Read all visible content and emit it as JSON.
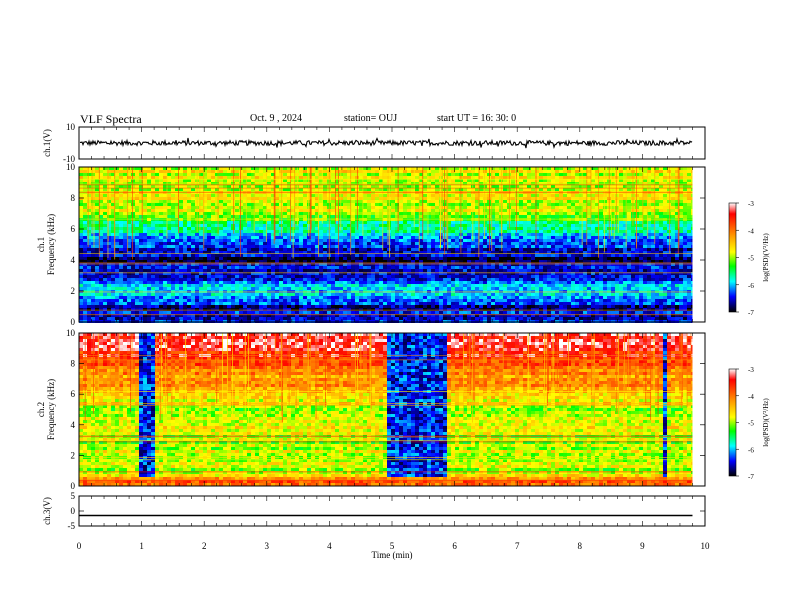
{
  "header": {
    "title": "VLF Spectra",
    "date": "Oct. 9 , 2024",
    "station": "station= OUJ",
    "start": "start UT = 16: 30: 0"
  },
  "chart_data": [
    {
      "type": "line",
      "id": "ch1-waveform",
      "ylabel": "ch.1(V)",
      "ylim": [
        -10,
        10
      ],
      "yticks": [
        "10",
        "-10"
      ],
      "xlim": [
        0,
        10
      ],
      "approx_level": 0,
      "approx_amplitude": 1.5
    },
    {
      "type": "heatmap",
      "id": "ch1-spectrogram",
      "ylabel": "ch.1\nFrequency (kHz)",
      "ylabel_lines": [
        "ch.1",
        "Frequency (kHz)"
      ],
      "ylim": [
        0,
        10
      ],
      "yticks": [
        "0",
        "2",
        "4",
        "6",
        "8",
        "10"
      ],
      "xlim": [
        0,
        10
      ],
      "data_end_min": 9.8,
      "colorbar": {
        "label": "log(PSD)(V²/Hz)",
        "ticks": [
          "-3",
          "-4",
          "-5",
          "-6",
          "-7"
        ],
        "range": [
          -7,
          -3
        ]
      },
      "level_by_freq_kHz": [
        [
          0,
          -6.5
        ],
        [
          1,
          -6.5
        ],
        [
          2,
          -6.0
        ],
        [
          3,
          -6.3
        ],
        [
          4,
          -6.8
        ],
        [
          5,
          -6.4
        ],
        [
          6,
          -5.6
        ],
        [
          7,
          -5.0
        ],
        [
          8,
          -4.8
        ],
        [
          9,
          -4.8
        ],
        [
          10,
          -4.8
        ]
      ]
    },
    {
      "type": "heatmap",
      "id": "ch2-spectrogram",
      "ylabel": "ch.2\nFrequency (kHz)",
      "ylabel_lines": [
        "ch.2",
        "Frequency (kHz)"
      ],
      "ylim": [
        0,
        10
      ],
      "yticks": [
        "0",
        "2",
        "4",
        "6",
        "8",
        "10"
      ],
      "xlim": [
        0,
        10
      ],
      "data_end_min": 9.8,
      "colorbar": {
        "label": "log(PSD)(V²/Hz)",
        "ticks": [
          "-3",
          "-4",
          "-5",
          "-6",
          "-7"
        ],
        "range": [
          -7,
          -3
        ]
      },
      "level_by_freq_kHz": [
        [
          0,
          -3.6
        ],
        [
          1,
          -4.9
        ],
        [
          2,
          -4.9
        ],
        [
          3,
          -5.0
        ],
        [
          4,
          -4.7
        ],
        [
          5,
          -4.9
        ],
        [
          6,
          -4.4
        ],
        [
          7,
          -4.2
        ],
        [
          8,
          -3.8
        ],
        [
          9,
          -3.4
        ],
        [
          10,
          -3.3
        ]
      ],
      "quiet_intervals_min": [
        [
          0.9,
          1.2
        ],
        [
          4.9,
          5.85
        ],
        [
          9.3,
          9.36
        ]
      ]
    },
    {
      "type": "line",
      "id": "ch3-waveform",
      "ylabel": "ch.3(V)",
      "ylim": [
        -5,
        5
      ],
      "yticks": [
        "5",
        "0",
        "-5"
      ],
      "xlim": [
        0,
        10
      ],
      "approx_level": -1.5
    }
  ],
  "xaxis": {
    "label": "Time (min)",
    "ticks": [
      "0",
      "1",
      "2",
      "3",
      "4",
      "5",
      "6",
      "7",
      "8",
      "9",
      "10"
    ]
  }
}
